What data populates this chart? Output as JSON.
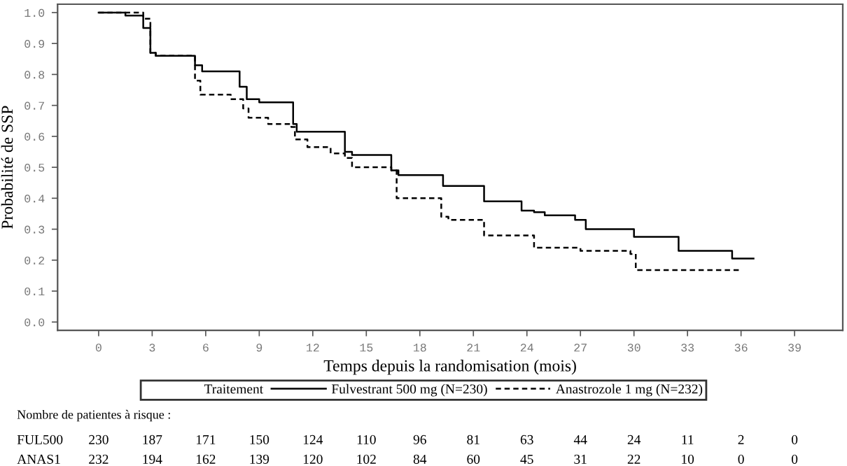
{
  "chart_data": {
    "type": "step",
    "xlabel": "Temps depuis la randomisation (mois)",
    "ylabel": "Probabilité de SSP",
    "legend_title": "Traitement",
    "legend": "bottom",
    "series": [
      {
        "name": "Fulvestrant 500 mg (N=230)",
        "color": "#000000",
        "line_style": "solid",
        "x": [
          0,
          1.5,
          2.5,
          2.9,
          3.2,
          5.4,
          5.8,
          7.9,
          8.3,
          9.0,
          10.9,
          11.1,
          13.8,
          14.2,
          16.4,
          16.8,
          19.3,
          21.6,
          23.7,
          24.4,
          25.0,
          26.7,
          27.3,
          30.0,
          32.5,
          35.5,
          36.7
        ],
        "values": [
          1.0,
          0.99,
          0.95,
          0.87,
          0.86,
          0.83,
          0.81,
          0.76,
          0.72,
          0.71,
          0.64,
          0.615,
          0.55,
          0.54,
          0.49,
          0.475,
          0.44,
          0.39,
          0.36,
          0.355,
          0.345,
          0.33,
          0.3,
          0.275,
          0.23,
          0.205,
          0.205
        ]
      },
      {
        "name": "Anastrozole 1 mg (N=232)",
        "color": "#000000",
        "line_style": "dashed",
        "x": [
          0,
          2.5,
          2.9,
          3.2,
          5.4,
          5.7,
          7.4,
          8.1,
          8.4,
          9.5,
          10.8,
          11.0,
          11.7,
          13.0,
          13.8,
          14.2,
          16.4,
          16.7,
          19.2,
          19.6,
          21.6,
          24.4,
          27.0,
          29.8,
          30.1,
          35.9
        ],
        "values": [
          1.0,
          0.98,
          0.87,
          0.86,
          0.78,
          0.735,
          0.72,
          0.69,
          0.66,
          0.64,
          0.63,
          0.59,
          0.565,
          0.545,
          0.53,
          0.5,
          0.49,
          0.4,
          0.34,
          0.33,
          0.28,
          0.24,
          0.23,
          0.22,
          0.168,
          0.168
        ]
      }
    ],
    "xlim": [
      -2.3,
      41.7
    ],
    "xticks": [
      0,
      3,
      6,
      9,
      12,
      15,
      18,
      21,
      24,
      27,
      30,
      33,
      36,
      39
    ],
    "ylim": [
      -0.027,
      1.027
    ],
    "yticks": [
      {
        "value": 0,
        "label": "0.0"
      },
      0.1,
      0.2,
      0.3,
      0.4,
      0.5,
      0.6,
      0.7,
      0.8,
      0.9,
      {
        "value": 1,
        "label": "1.0"
      }
    ],
    "grid": false,
    "annotations": [
      "Nombre de patientes à risque :",
      "FUL500",
      "230",
      "187",
      "171",
      "150",
      "124",
      "110",
      "96",
      "81",
      "63",
      "44",
      "24",
      "11",
      "2",
      "0",
      "ANAS1",
      "232",
      "194",
      "162",
      "139",
      "120",
      "102",
      "84",
      "60",
      "45",
      "31",
      "22",
      "10",
      "0",
      "0"
    ]
  }
}
